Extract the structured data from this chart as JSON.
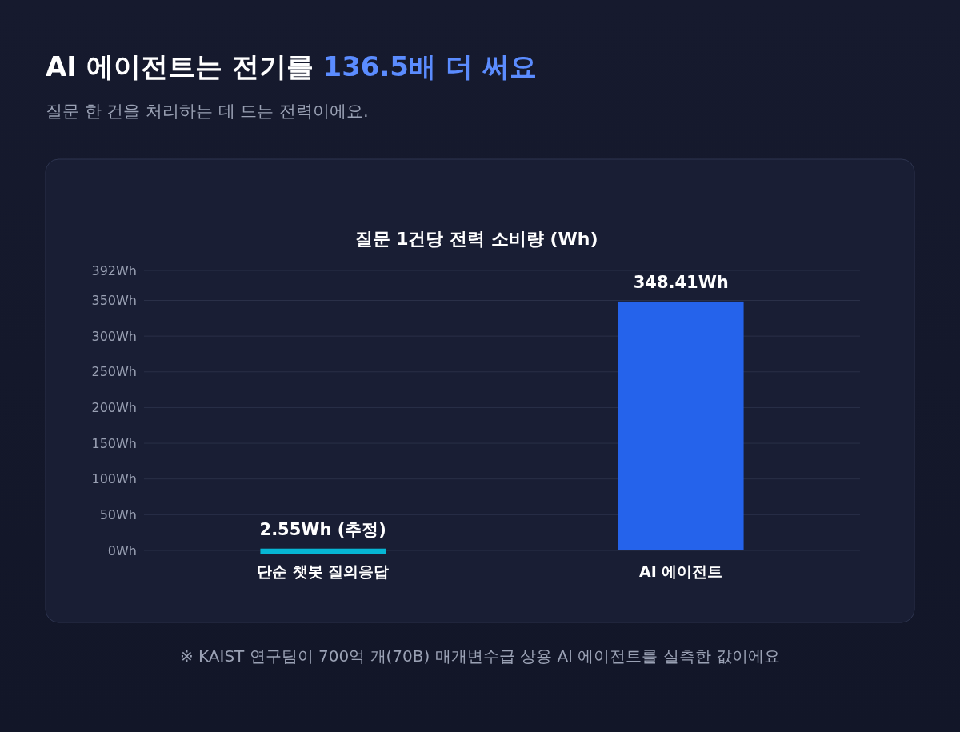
{
  "chart_data": {
    "type": "bar",
    "title": "AI 에이전트는 전기를 136.5배 더 써요",
    "subtitle": "질문 한 건을 처리하는 데 드는 전력이에요.",
    "annotations": [
      "질문 1건당 전력 소비량 (Wh)",
      "※ KAIST 연구팀이 700억 개(70B) 매개변수급 상용 AI 에이전트를 실측한 값이에요"
    ],
    "categories": [
      "단순 챗봇 질의응답",
      "AI 에이전트"
    ],
    "values": [
      2.55,
      348.41
    ],
    "colors": [
      "#06b6d4",
      "#2563eb"
    ],
    "value_labels": [
      "2.55Wh (추정)",
      "348.41Wh"
    ],
    "ylim": [
      0,
      392
    ],
    "yticks": [
      {
        "value": 0,
        "label": "0Wh"
      },
      {
        "value": 50,
        "label": "50Wh"
      },
      {
        "value": 100,
        "label": "100Wh"
      },
      {
        "value": 150,
        "label": "150Wh"
      },
      {
        "value": 200,
        "label": "200Wh"
      },
      {
        "value": 250,
        "label": "250Wh"
      },
      {
        "value": 300,
        "label": "300Wh"
      },
      {
        "value": 350,
        "label": "350Wh"
      },
      {
        "value": 392,
        "label": "392Wh"
      }
    ],
    "grid": "y"
  }
}
